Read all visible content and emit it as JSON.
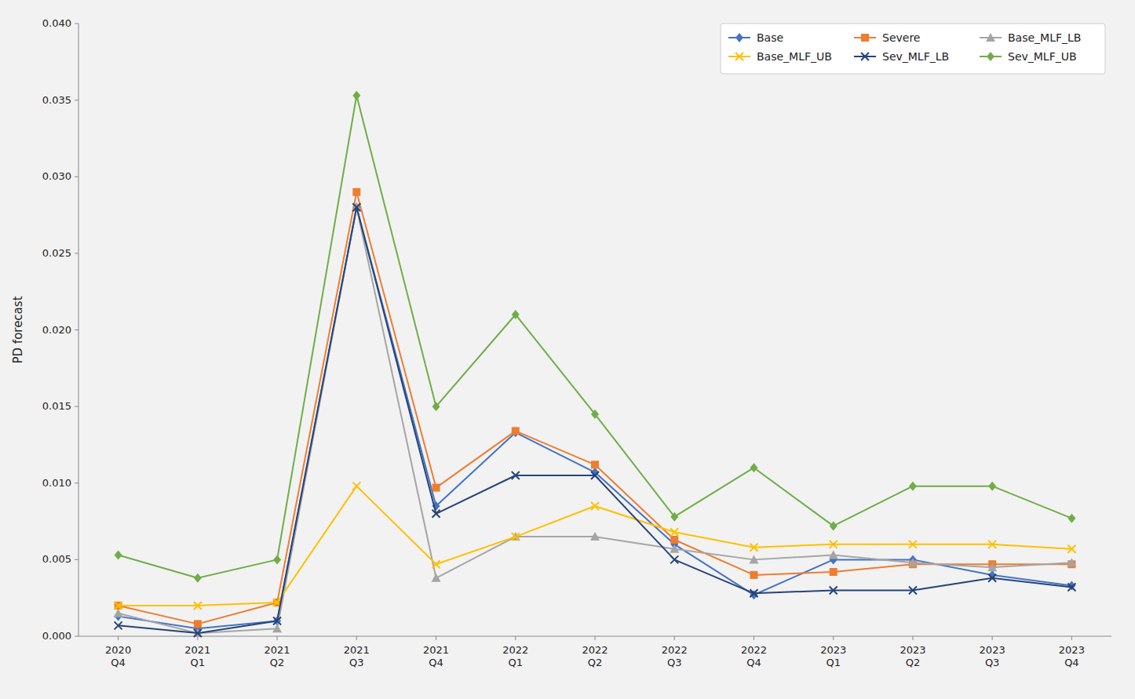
{
  "chart_data": {
    "type": "line",
    "categories": [
      "2020\nQ4",
      "2021\nQ1",
      "2021\nQ2",
      "2021\nQ3",
      "2021\nQ4",
      "2022\nQ1",
      "2022\nQ2",
      "2022\nQ3",
      "2022\nQ4",
      "2023\nQ1",
      "2023\nQ2",
      "2023\nQ3",
      "2023\nQ4"
    ],
    "series": [
      {
        "name": "Base",
        "color": "#4472C4",
        "marker": "diamond",
        "values": [
          0.0013,
          0.0005,
          0.001,
          0.028,
          0.0085,
          0.0133,
          0.0107,
          0.006,
          0.0027,
          0.005,
          0.005,
          0.004,
          0.0033
        ]
      },
      {
        "name": "Severe",
        "color": "#ED7D31",
        "marker": "square",
        "values": [
          0.002,
          0.0008,
          0.0022,
          0.029,
          0.0097,
          0.0134,
          0.0112,
          0.0063,
          0.004,
          0.0042,
          0.0047,
          0.0047,
          0.0047
        ]
      },
      {
        "name": "Base_MLF_LB",
        "color": "#A5A5A5",
        "marker": "triangle",
        "values": [
          0.0015,
          0.0002,
          0.0005,
          0.028,
          0.0038,
          0.0065,
          0.0065,
          0.0057,
          0.005,
          0.0053,
          0.0048,
          0.0045,
          0.0048
        ]
      },
      {
        "name": "Base_MLF_UB",
        "color": "#FFC000",
        "marker": "x",
        "values": [
          0.002,
          0.002,
          0.0022,
          0.0098,
          0.0047,
          0.0065,
          0.0085,
          0.0068,
          0.0058,
          0.006,
          0.006,
          0.006,
          0.0057
        ]
      },
      {
        "name": "Sev_MLF_LB",
        "color": "#264478",
        "marker": "x",
        "values": [
          0.0007,
          0.0002,
          0.001,
          0.028,
          0.008,
          0.0105,
          0.0105,
          0.005,
          0.0028,
          0.003,
          0.003,
          0.0038,
          0.0032
        ]
      },
      {
        "name": "Sev_MLF_UB",
        "color": "#70AD47",
        "marker": "diamond",
        "values": [
          0.0053,
          0.0038,
          0.005,
          0.0353,
          0.015,
          0.021,
          0.0145,
          0.0078,
          0.011,
          0.0072,
          0.0098,
          0.0098,
          0.0077
        ]
      }
    ],
    "ylabel": "PD forecast",
    "ylim": [
      0,
      0.04
    ],
    "yticks": [
      {
        "value": 0,
        "label": "0.000"
      },
      {
        "value": 0.005,
        "label": "0.005"
      },
      {
        "value": 0.01,
        "label": "0.010"
      },
      {
        "value": 0.015,
        "label": "0.015"
      },
      {
        "value": 0.02,
        "label": "0.020"
      },
      {
        "value": 0.025,
        "label": "0.025"
      },
      {
        "value": 0.03,
        "label": "0.030"
      },
      {
        "value": 0.035,
        "label": "0.035"
      },
      {
        "value": 0.04,
        "label": "0.040"
      }
    ],
    "grid": false,
    "legend": "upper right"
  }
}
